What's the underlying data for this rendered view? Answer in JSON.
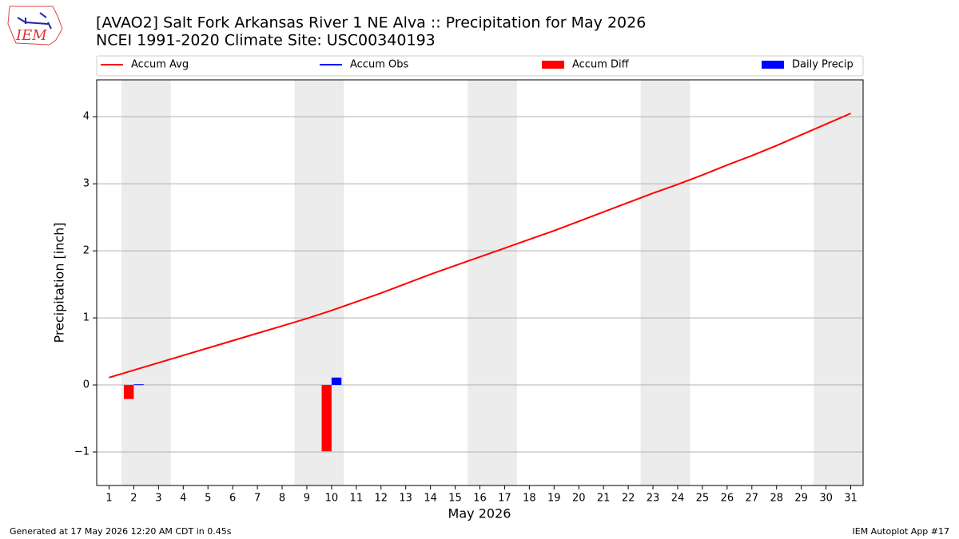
{
  "chart_data": {
    "type": "line_bar",
    "title": "[AVAO2] Salt Fork Arkansas River 1 NE Alva :: Precipitation for May 2026",
    "subtitle": "NCEI 1991-2020 Climate Site: USC00340193",
    "logo": "IEM",
    "ylabel": "Precipitation [inch]",
    "xlabel": "May 2026",
    "footer_left": "Generated at 17 May 2026 12:20 AM CDT in 0.45s",
    "footer_right": "IEM Autoplot App #17",
    "x": [
      1,
      2,
      3,
      4,
      5,
      6,
      7,
      8,
      9,
      10,
      11,
      12,
      13,
      14,
      15,
      16,
      17,
      18,
      19,
      20,
      21,
      22,
      23,
      24,
      25,
      26,
      27,
      28,
      29,
      30,
      31
    ],
    "xlim": [
      0.5,
      31.5
    ],
    "xticks": [
      1,
      2,
      3,
      4,
      5,
      6,
      7,
      8,
      9,
      10,
      11,
      12,
      13,
      14,
      15,
      16,
      17,
      18,
      19,
      20,
      21,
      22,
      23,
      24,
      25,
      26,
      27,
      28,
      29,
      30,
      31
    ],
    "ylim": [
      -1.5,
      4.55
    ],
    "yticks": [
      {
        "value": -1,
        "label": "−1"
      },
      0,
      1,
      2,
      3,
      4
    ],
    "grid": true,
    "shaded_spans": [
      [
        1.5,
        3.5
      ],
      [
        8.5,
        10.5
      ],
      [
        15.5,
        17.5
      ],
      [
        22.5,
        24.5
      ],
      [
        29.5,
        31.5
      ]
    ],
    "series": [
      {
        "name": "Accum Avg",
        "kind": "line",
        "color": "#ff0000",
        "values": [
          0.11,
          0.22,
          0.33,
          0.44,
          0.55,
          0.66,
          0.77,
          0.88,
          0.99,
          1.11,
          1.24,
          1.37,
          1.51,
          1.65,
          1.78,
          1.91,
          2.04,
          2.17,
          2.3,
          2.44,
          2.58,
          2.72,
          2.86,
          2.99,
          3.13,
          3.28,
          3.42,
          3.57,
          3.73,
          3.89,
          4.05
        ]
      },
      {
        "name": "Accum Obs",
        "kind": "line",
        "color": "#0000ff",
        "values": [
          null,
          null,
          null,
          null,
          null,
          null,
          null,
          null,
          null,
          null,
          null,
          null,
          null,
          null,
          null,
          null,
          null,
          null,
          null,
          null,
          null,
          null,
          null,
          null,
          null,
          null,
          null,
          null,
          null,
          null,
          null
        ]
      },
      {
        "name": "Accum Diff",
        "kind": "bar",
        "side": "left",
        "color": "#ff0000",
        "values": [
          null,
          -0.21,
          null,
          null,
          null,
          null,
          null,
          null,
          null,
          -0.99,
          null,
          null,
          null,
          null,
          null,
          null,
          null,
          null,
          null,
          null,
          null,
          null,
          null,
          null,
          null,
          null,
          null,
          null,
          null,
          null,
          null
        ]
      },
      {
        "name": "Daily Precip",
        "kind": "bar",
        "side": "right",
        "color": "#0000ff",
        "values": [
          null,
          0.01,
          null,
          null,
          null,
          null,
          null,
          null,
          null,
          0.11,
          null,
          null,
          null,
          null,
          null,
          null,
          null,
          null,
          null,
          null,
          null,
          null,
          null,
          null,
          null,
          null,
          null,
          null,
          null,
          null,
          null
        ]
      }
    ]
  }
}
